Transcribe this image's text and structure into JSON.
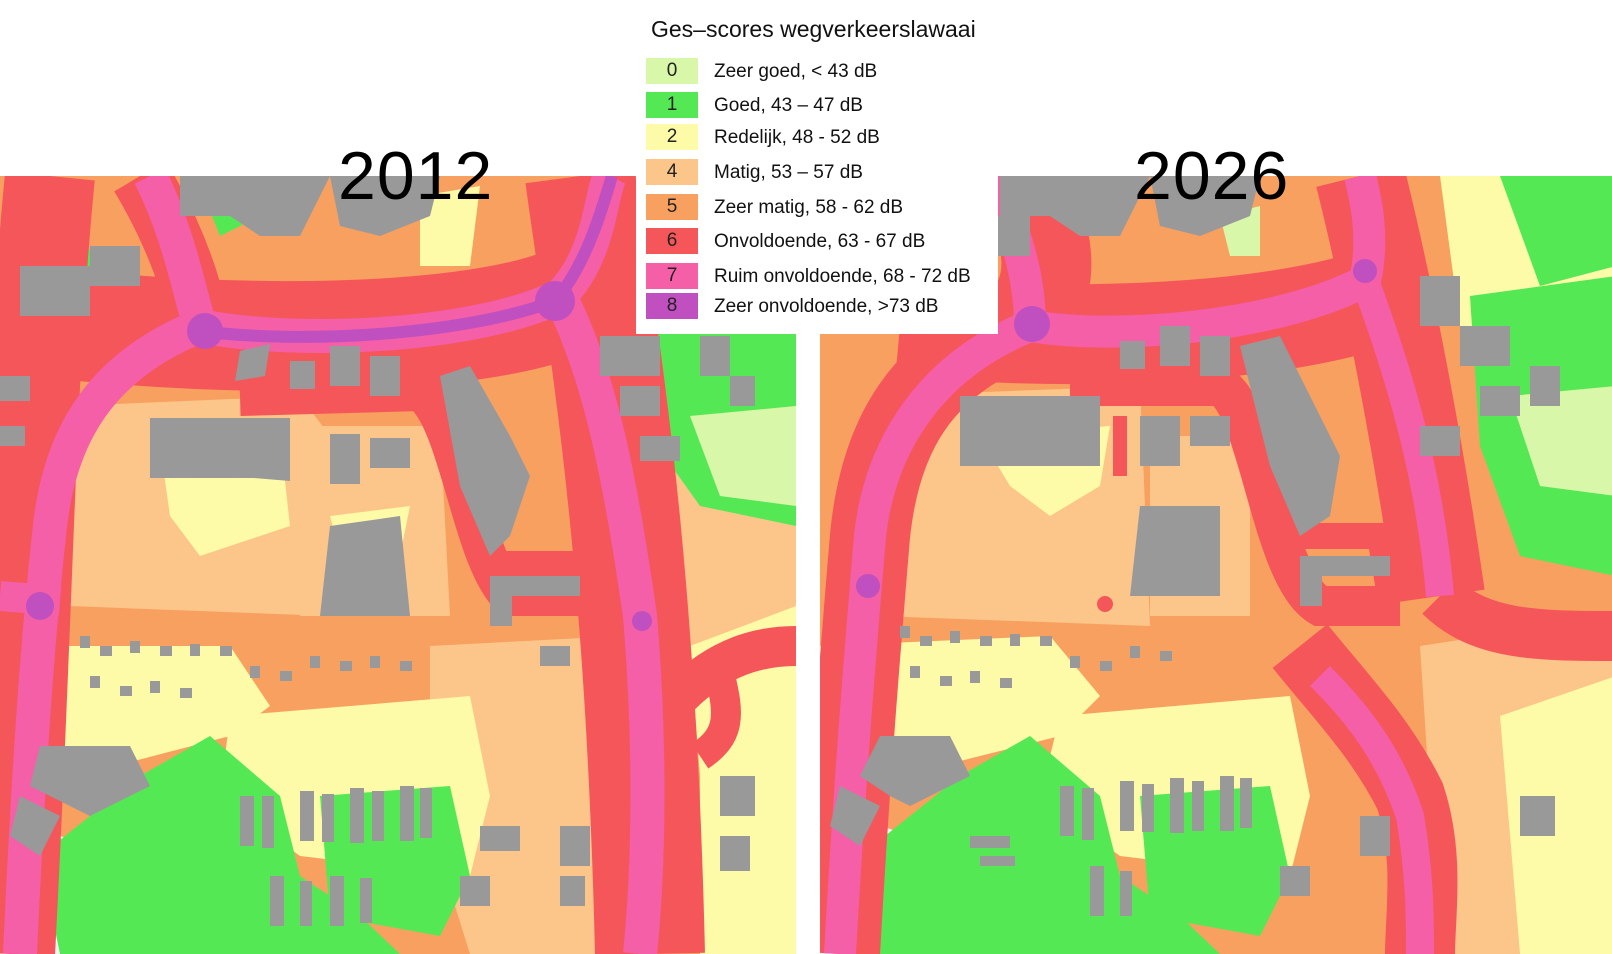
{
  "legend": {
    "title": "Ges–scores  wegverkeerslawaai",
    "items": [
      {
        "score": "0",
        "label": "Zeer goed, < 43 dB",
        "color": "#d9f7a8"
      },
      {
        "score": "1",
        "label": "Goed, 43 – 47 dB",
        "color": "#55e855"
      },
      {
        "score": "2",
        "label": "Redelijk, 48 - 52 dB",
        "color": "#fdfaa8"
      },
      {
        "score": "4",
        "label": "Matig, 53 – 57 dB",
        "color": "#fcc58a"
      },
      {
        "score": "5",
        "label": "Zeer matig,  58 - 62 dB",
        "color": "#f8a060"
      },
      {
        "score": "6",
        "label": "Onvoldoende, 63 - 67 dB",
        "color": "#f5565a"
      },
      {
        "score": "7",
        "label": "Ruim onvoldoende, 68 - 72 dB",
        "color": "#f45fa8"
      },
      {
        "score": "8",
        "label": "Zeer onvoldoende, >73 dB",
        "color": "#c050c0"
      }
    ]
  },
  "maps": [
    {
      "year": "2012"
    },
    {
      "year": "2026"
    }
  ]
}
